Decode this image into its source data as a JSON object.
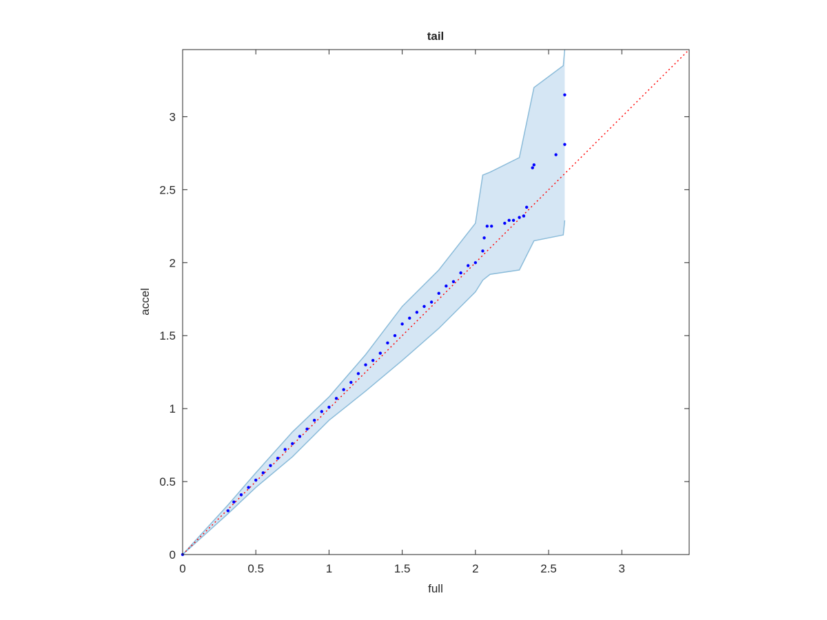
{
  "chart_data": {
    "type": "scatter",
    "title": "tail",
    "x_label": "full",
    "y_label": "accel",
    "xlim": [
      0,
      3.46
    ],
    "ylim": [
      0,
      3.46
    ],
    "xticks": [
      0,
      0.5,
      1,
      1.5,
      2,
      2.5,
      3
    ],
    "yticks": [
      0,
      0.5,
      1,
      1.5,
      2,
      2.5,
      3
    ],
    "series": [
      {
        "color": "#0000ff",
        "x": [
          0,
          0.31,
          0.35,
          0.4,
          0.45,
          0.5,
          0.55,
          0.6,
          0.65,
          0.7,
          0.75,
          0.8,
          0.85,
          0.9,
          0.95,
          1.0,
          1.05,
          1.1,
          1.15,
          1.2,
          1.25,
          1.3,
          1.35,
          1.4,
          1.45,
          1.5,
          1.55,
          1.6,
          1.65,
          1.7,
          1.75,
          1.8,
          1.85,
          1.9,
          1.95,
          2.0,
          2.05,
          2.06,
          2.08,
          2.11,
          2.2,
          2.23,
          2.26,
          2.3,
          2.33,
          2.35,
          2.39,
          2.4,
          2.55,
          2.61,
          2.61
        ],
        "values": [
          0,
          0.3,
          0.36,
          0.41,
          0.46,
          0.51,
          0.56,
          0.61,
          0.66,
          0.72,
          0.76,
          0.81,
          0.86,
          0.92,
          0.98,
          1.01,
          1.07,
          1.13,
          1.18,
          1.24,
          1.3,
          1.33,
          1.38,
          1.45,
          1.5,
          1.58,
          1.62,
          1.66,
          1.7,
          1.73,
          1.79,
          1.84,
          1.87,
          1.93,
          1.98,
          2.0,
          2.08,
          2.17,
          2.25,
          2.25,
          2.27,
          2.29,
          2.29,
          2.31,
          2.32,
          2.38,
          2.65,
          2.67,
          2.74,
          2.81,
          3.15
        ]
      }
    ],
    "band": {
      "color": "#d5e6f4",
      "edge_color": "#8abbd9",
      "x": [
        0,
        0.31,
        0.5,
        0.75,
        1.0,
        1.25,
        1.5,
        1.75,
        2.0,
        2.05,
        2.1,
        2.3,
        2.4,
        2.6,
        2.61
      ],
      "upper": [
        0,
        0.34,
        0.56,
        0.84,
        1.08,
        1.37,
        1.7,
        1.95,
        2.27,
        2.6,
        2.62,
        2.72,
        3.2,
        3.35,
        3.46
      ],
      "lower": [
        0,
        0.28,
        0.46,
        0.67,
        0.92,
        1.12,
        1.33,
        1.55,
        1.8,
        1.88,
        1.92,
        1.95,
        2.15,
        2.19,
        2.29
      ]
    },
    "reference_line": {
      "color": "#ff0000",
      "x": [
        0,
        3.46
      ],
      "values": [
        0,
        3.46
      ]
    }
  }
}
